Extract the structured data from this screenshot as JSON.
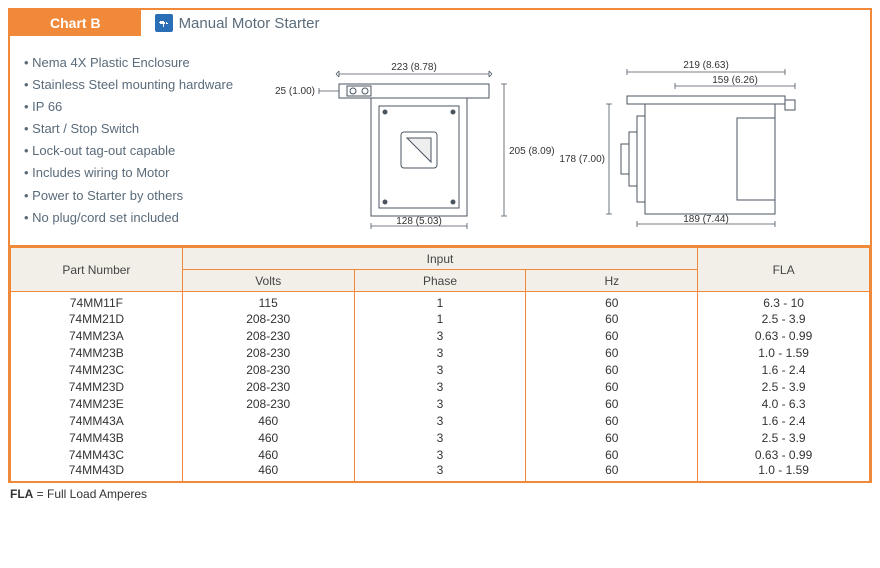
{
  "header": {
    "label": "Chart B",
    "title": "Manual Motor Starter"
  },
  "features": [
    "Nema 4X Plastic Enclosure",
    "Stainless Steel mounting hardware",
    "IP 66",
    "Start / Stop Switch",
    "Lock-out tag-out capable",
    "Includes wiring to Motor",
    "Power to Starter by others",
    "No plug/cord set included"
  ],
  "drawing_front": {
    "width_top": "223 (8.78)",
    "height_right": "205 (8.09)",
    "left_offset": "25 (1.00)",
    "width_bottom": "128 (5.03)"
  },
  "drawing_side": {
    "width_top": "219 (8.63)",
    "inner_top": "159 (6.26)",
    "height_left": "178 (7.00)",
    "width_bottom": "189 (7.44)"
  },
  "table": {
    "headers": {
      "part": "Part Number",
      "input": "Input",
      "volts": "Volts",
      "phase": "Phase",
      "hz": "Hz",
      "fla": "FLA"
    },
    "rows": [
      {
        "part": "74MM11F",
        "volts": "115",
        "phase": "1",
        "hz": "60",
        "fla": "6.3 - 10"
      },
      {
        "part": "74MM21D",
        "volts": "208-230",
        "phase": "1",
        "hz": "60",
        "fla": "2.5 - 3.9"
      },
      {
        "part": "74MM23A",
        "volts": "208-230",
        "phase": "3",
        "hz": "60",
        "fla": "0.63 - 0.99"
      },
      {
        "part": "74MM23B",
        "volts": "208-230",
        "phase": "3",
        "hz": "60",
        "fla": "1.0 - 1.59"
      },
      {
        "part": "74MM23C",
        "volts": "208-230",
        "phase": "3",
        "hz": "60",
        "fla": "1.6 - 2.4"
      },
      {
        "part": "74MM23D",
        "volts": "208-230",
        "phase": "3",
        "hz": "60",
        "fla": "2.5 - 3.9"
      },
      {
        "part": "74MM23E",
        "volts": "208-230",
        "phase": "3",
        "hz": "60",
        "fla": "4.0 - 6.3"
      },
      {
        "part": "74MM43A",
        "volts": "460",
        "phase": "3",
        "hz": "60",
        "fla": "1.6 - 2.4"
      },
      {
        "part": "74MM43B",
        "volts": "460",
        "phase": "3",
        "hz": "60",
        "fla": "2.5 - 3.9"
      },
      {
        "part": "74MM43C",
        "volts": "460",
        "phase": "3",
        "hz": "60",
        "fla": "0.63 - 0.99"
      },
      {
        "part": "74MM43D",
        "volts": "460",
        "phase": "3",
        "hz": "60",
        "fla": "1.0 - 1.59"
      }
    ]
  },
  "footnote": {
    "term": "FLA",
    "def": " = Full Load Amperes"
  },
  "colors": {
    "orange": "#f08a3a",
    "header_bg": "#f2efe9",
    "text_gray": "#5a6b7a",
    "icon_blue": "#2a6fb5",
    "stroke": "#4a5560"
  },
  "dim_font_size": 10
}
